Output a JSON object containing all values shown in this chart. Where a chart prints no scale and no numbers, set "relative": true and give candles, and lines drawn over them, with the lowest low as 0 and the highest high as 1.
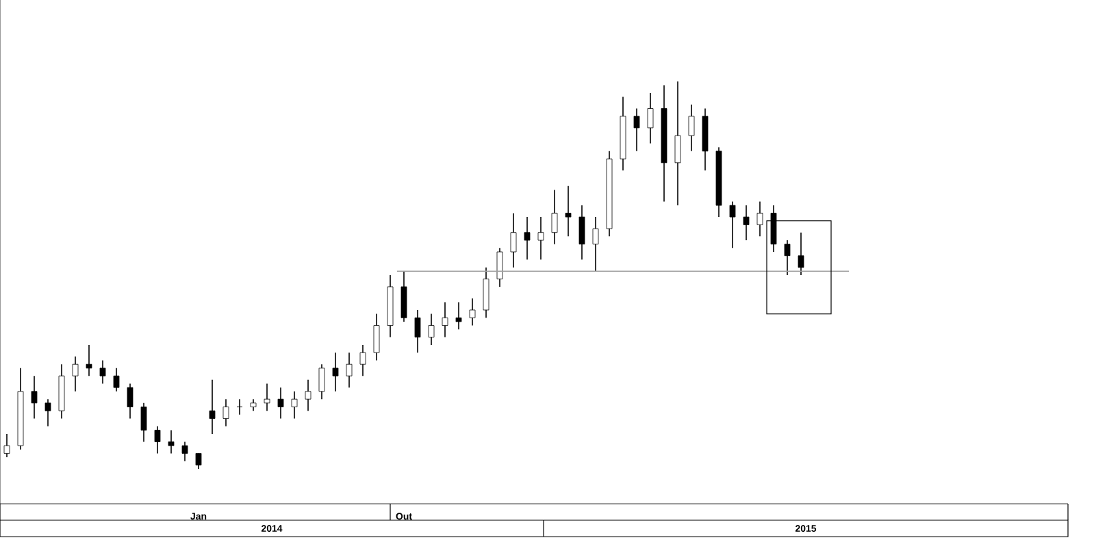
{
  "chart_data": {
    "type": "candlestick",
    "relative": true,
    "categories": [
      null,
      null,
      null,
      null,
      null,
      null,
      null,
      null,
      null,
      null,
      null,
      null,
      null,
      null,
      "Jan",
      null,
      null,
      null,
      null,
      null,
      null,
      null,
      null,
      null,
      null,
      null,
      null,
      null,
      null,
      "Out",
      null,
      null,
      null,
      null,
      null,
      null,
      null,
      null,
      null,
      null,
      null,
      null,
      null,
      null,
      null,
      null,
      null,
      null,
      null,
      null,
      null,
      null,
      null,
      null,
      null,
      null,
      null,
      null,
      null,
      null,
      null,
      null,
      null,
      null,
      null,
      null,
      null,
      null,
      null,
      null,
      null,
      null,
      null,
      null,
      null,
      null,
      null,
      null
    ],
    "ohlc": [
      [
        0.04,
        0.09,
        0.03,
        0.06
      ],
      [
        0.06,
        0.26,
        0.05,
        0.2
      ],
      [
        0.2,
        0.24,
        0.13,
        0.17
      ],
      [
        0.17,
        0.18,
        0.11,
        0.15
      ],
      [
        0.15,
        0.27,
        0.13,
        0.24
      ],
      [
        0.24,
        0.29,
        0.2,
        0.27
      ],
      [
        0.27,
        0.32,
        0.24,
        0.26
      ],
      [
        0.26,
        0.28,
        0.22,
        0.24
      ],
      [
        0.24,
        0.26,
        0.2,
        0.21
      ],
      [
        0.21,
        0.22,
        0.13,
        0.16
      ],
      [
        0.16,
        0.17,
        0.07,
        0.1
      ],
      [
        0.1,
        0.11,
        0.04,
        0.07
      ],
      [
        0.07,
        0.1,
        0.04,
        0.06
      ],
      [
        0.06,
        0.07,
        0.02,
        0.04
      ],
      [
        0.04,
        0.04,
        0,
        0.01
      ],
      [
        0.15,
        0.23,
        0.09,
        0.13
      ],
      [
        0.13,
        0.18,
        0.11,
        0.16
      ],
      [
        0.16,
        0.18,
        0.14,
        0.16
      ],
      [
        0.16,
        0.18,
        0.15,
        0.17
      ],
      [
        0.17,
        0.22,
        0.15,
        0.18
      ],
      [
        0.18,
        0.21,
        0.13,
        0.16
      ],
      [
        0.16,
        0.2,
        0.13,
        0.18
      ],
      [
        0.18,
        0.23,
        0.15,
        0.2
      ],
      [
        0.2,
        0.27,
        0.18,
        0.26
      ],
      [
        0.26,
        0.3,
        0.2,
        0.24
      ],
      [
        0.24,
        0.3,
        0.21,
        0.27
      ],
      [
        0.27,
        0.32,
        0.24,
        0.3
      ],
      [
        0.3,
        0.4,
        0.28,
        0.37
      ],
      [
        0.37,
        0.5,
        0.34,
        0.47
      ],
      [
        0.47,
        0.51,
        0.38,
        0.39
      ],
      [
        0.39,
        0.41,
        0.3,
        0.34
      ],
      [
        0.34,
        0.4,
        0.32,
        0.37
      ],
      [
        0.37,
        0.43,
        0.34,
        0.39
      ],
      [
        0.39,
        0.43,
        0.36,
        0.38
      ],
      [
        0.39,
        0.44,
        0.37,
        0.41
      ],
      [
        0.41,
        0.52,
        0.39,
        0.49
      ],
      [
        0.49,
        0.57,
        0.47,
        0.56
      ],
      [
        0.56,
        0.66,
        0.52,
        0.61
      ],
      [
        0.61,
        0.65,
        0.54,
        0.59
      ],
      [
        0.59,
        0.65,
        0.54,
        0.61
      ],
      [
        0.61,
        0.72,
        0.58,
        0.66
      ],
      [
        0.66,
        0.73,
        0.6,
        0.65
      ],
      [
        0.65,
        0.68,
        0.54,
        0.58
      ],
      [
        0.58,
        0.65,
        0.51,
        0.62
      ],
      [
        0.62,
        0.82,
        0.6,
        0.8
      ],
      [
        0.8,
        0.96,
        0.77,
        0.91
      ],
      [
        0.91,
        0.93,
        0.82,
        0.88
      ],
      [
        0.88,
        0.97,
        0.84,
        0.93
      ],
      [
        0.93,
        0.99,
        0.69,
        0.79
      ],
      [
        0.79,
        1,
        0.68,
        0.86
      ],
      [
        0.86,
        0.94,
        0.82,
        0.91
      ],
      [
        0.91,
        0.93,
        0.77,
        0.82
      ],
      [
        0.82,
        0.83,
        0.65,
        0.68
      ],
      [
        0.68,
        0.69,
        0.57,
        0.65
      ],
      [
        0.65,
        0.68,
        0.59,
        0.63
      ],
      [
        0.63,
        0.69,
        0.6,
        0.66
      ],
      [
        0.66,
        0.68,
        0.56,
        0.58
      ],
      [
        0.58,
        0.59,
        0.5,
        0.55
      ],
      [
        0.55,
        0.61,
        0.5,
        0.52
      ],
      null,
      null,
      null,
      null,
      null,
      null,
      null,
      null,
      null,
      null,
      null,
      null,
      null,
      null,
      null,
      null,
      null,
      null,
      null
    ],
    "ref_lines": [
      {
        "axis": "y",
        "value": 0.51,
        "color": "#a0a0a0"
      }
    ],
    "annotations": [
      "2014",
      "2015"
    ]
  }
}
